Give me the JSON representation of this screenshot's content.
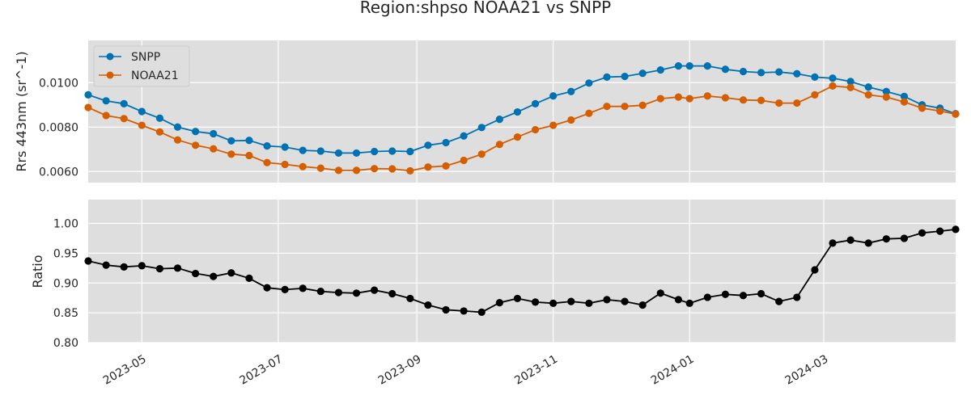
{
  "chart_data": [
    {
      "type": "line",
      "title": "Region:shpso NOAA21 vs SNPP",
      "xlabel": "",
      "ylabel": "Rrs 443nm (sr^-1)",
      "xlim": [
        "2023-04-07",
        "2024-04-29"
      ],
      "ylim": [
        0.0055,
        0.0119
      ],
      "yticks": [
        "0.0060",
        "0.0080",
        "0.0100"
      ],
      "ytick_values": [
        0.006,
        0.008,
        0.01
      ],
      "grid": true,
      "legend": "top-left",
      "x": [
        "2023-04-07",
        "2023-04-15",
        "2023-04-23",
        "2023-05-01",
        "2023-05-09",
        "2023-05-17",
        "2023-05-25",
        "2023-06-02",
        "2023-06-10",
        "2023-06-18",
        "2023-06-26",
        "2023-07-04",
        "2023-07-12",
        "2023-07-20",
        "2023-07-28",
        "2023-08-05",
        "2023-08-13",
        "2023-08-21",
        "2023-08-29",
        "2023-09-06",
        "2023-09-14",
        "2023-09-22",
        "2023-09-30",
        "2023-10-08",
        "2023-10-16",
        "2023-10-24",
        "2023-11-01",
        "2023-11-09",
        "2023-11-17",
        "2023-11-25",
        "2023-12-03",
        "2023-12-11",
        "2023-12-19",
        "2023-12-27",
        "2024-01-01",
        "2024-01-09",
        "2024-01-17",
        "2024-01-25",
        "2024-02-02",
        "2024-02-10",
        "2024-02-18",
        "2024-02-26",
        "2024-03-05",
        "2024-03-13",
        "2024-03-21",
        "2024-03-29",
        "2024-04-06",
        "2024-04-14",
        "2024-04-22",
        "2024-04-29"
      ],
      "series": [
        {
          "name": "SNPP",
          "color": "#0072b2",
          "values": [
            0.00945,
            0.00918,
            0.00905,
            0.0087,
            0.0084,
            0.008,
            0.0078,
            0.0077,
            0.00738,
            0.0074,
            0.00715,
            0.0071,
            0.00695,
            0.00692,
            0.00683,
            0.00683,
            0.0069,
            0.00692,
            0.0069,
            0.00718,
            0.0073,
            0.0076,
            0.00798,
            0.00835,
            0.00868,
            0.00905,
            0.0094,
            0.0096,
            0.00998,
            0.01025,
            0.01028,
            0.01042,
            0.01057,
            0.01075,
            0.01075,
            0.01075,
            0.0106,
            0.0105,
            0.01045,
            0.01048,
            0.0104,
            0.01025,
            0.0102,
            0.01005,
            0.0098,
            0.0096,
            0.00938,
            0.009,
            0.00885,
            0.0086
          ]
        },
        {
          "name": "NOAA21",
          "color": "#d55e00",
          "values": [
            0.00888,
            0.00852,
            0.00838,
            0.00808,
            0.00778,
            0.00742,
            0.00718,
            0.00702,
            0.00678,
            0.00672,
            0.0064,
            0.00632,
            0.00622,
            0.00615,
            0.00605,
            0.00605,
            0.00613,
            0.00612,
            0.00603,
            0.0062,
            0.00625,
            0.0065,
            0.00678,
            0.00722,
            0.00755,
            0.00788,
            0.00808,
            0.00832,
            0.00862,
            0.00893,
            0.00893,
            0.00898,
            0.00928,
            0.00935,
            0.00928,
            0.0094,
            0.00932,
            0.00922,
            0.0092,
            0.00908,
            0.00908,
            0.00945,
            0.00985,
            0.00978,
            0.00945,
            0.00935,
            0.00913,
            0.00885,
            0.00872,
            0.00858
          ]
        }
      ]
    },
    {
      "type": "line",
      "title": "",
      "xlabel": "",
      "ylabel": "Ratio",
      "xlim": [
        "2023-04-07",
        "2024-04-29"
      ],
      "ylim": [
        0.8,
        1.04
      ],
      "yticks": [
        "0.80",
        "0.85",
        "0.90",
        "0.95",
        "1.00"
      ],
      "ytick_values": [
        0.8,
        0.85,
        0.9,
        0.95,
        1.0
      ],
      "xticks": [
        "2023-05",
        "2023-07",
        "2023-09",
        "2023-11",
        "2024-01",
        "2024-03"
      ],
      "xtick_dates": [
        "2023-05-01",
        "2023-07-01",
        "2023-09-01",
        "2023-11-01",
        "2024-01-01",
        "2024-03-01"
      ],
      "grid": true,
      "x": [
        "2023-04-07",
        "2023-04-15",
        "2023-04-23",
        "2023-05-01",
        "2023-05-09",
        "2023-05-17",
        "2023-05-25",
        "2023-06-02",
        "2023-06-10",
        "2023-06-18",
        "2023-06-26",
        "2023-07-04",
        "2023-07-12",
        "2023-07-20",
        "2023-07-28",
        "2023-08-05",
        "2023-08-13",
        "2023-08-21",
        "2023-08-29",
        "2023-09-06",
        "2023-09-14",
        "2023-09-22",
        "2023-09-30",
        "2023-10-08",
        "2023-10-16",
        "2023-10-24",
        "2023-11-01",
        "2023-11-09",
        "2023-11-17",
        "2023-11-25",
        "2023-12-03",
        "2023-12-11",
        "2023-12-19",
        "2023-12-27",
        "2024-01-01",
        "2024-01-09",
        "2024-01-17",
        "2024-01-25",
        "2024-02-02",
        "2024-02-10",
        "2024-02-18",
        "2024-02-26",
        "2024-03-05",
        "2024-03-13",
        "2024-03-21",
        "2024-03-29",
        "2024-04-06",
        "2024-04-14",
        "2024-04-22",
        "2024-04-29"
      ],
      "series": [
        {
          "color": "#000000",
          "values": [
            0.937,
            0.93,
            0.927,
            0.929,
            0.924,
            0.925,
            0.916,
            0.911,
            0.917,
            0.908,
            0.892,
            0.889,
            0.891,
            0.886,
            0.884,
            0.883,
            0.888,
            0.882,
            0.874,
            0.863,
            0.855,
            0.853,
            0.851,
            0.867,
            0.874,
            0.868,
            0.866,
            0.869,
            0.866,
            0.872,
            0.869,
            0.863,
            0.883,
            0.872,
            0.866,
            0.876,
            0.881,
            0.879,
            0.882,
            0.869,
            0.876,
            0.922,
            0.967,
            0.972,
            0.967,
            0.974,
            0.975,
            0.984,
            0.987,
            0.99
          ]
        }
      ]
    }
  ]
}
